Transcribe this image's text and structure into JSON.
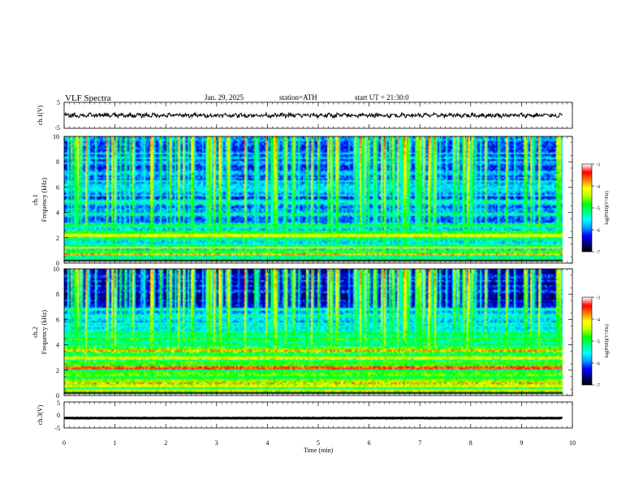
{
  "header": {
    "title": "VLF  Spectra",
    "date": "Jan. 29, 2025",
    "station": "station=ATH",
    "start": "start  UT  =   21:30:0"
  },
  "chart_data": [
    {
      "type": "line",
      "panel": "ch1-waveform",
      "ylabel": "ch.1(V)",
      "ylim": [
        -5,
        5
      ],
      "yticks": [
        "5",
        "-5"
      ],
      "xlim": [
        0,
        10
      ],
      "series": [
        {
          "mean": 0,
          "amplitude": 1.0,
          "xmax": 9.8
        }
      ]
    },
    {
      "type": "heatmap",
      "panel": "ch1-spectrogram",
      "ylabel": [
        "ch.1",
        "Frequency  (kHz)"
      ],
      "ylim": [
        0,
        10
      ],
      "yticks": [
        "0",
        "2",
        "4",
        "6",
        "8",
        "10"
      ],
      "xlim": [
        0,
        10
      ],
      "colorbar": {
        "label": "log(PSD)(V²/Hz)",
        "range": [
          -7,
          -3
        ],
        "ticks": [
          "-3",
          "-4",
          "-5",
          "-6",
          "-7"
        ]
      }
    },
    {
      "type": "heatmap",
      "panel": "ch2-spectrogram",
      "ylabel": [
        "ch.2",
        "Frequency  (kHz)"
      ],
      "ylim": [
        0,
        10
      ],
      "yticks": [
        "0",
        "2",
        "4",
        "6",
        "8",
        "10"
      ],
      "xlim": [
        0,
        10
      ],
      "colorbar": {
        "label": "log(PSD)(V²/Hz)",
        "range": [
          -7,
          -3
        ],
        "ticks": [
          "-3",
          "-4",
          "-5",
          "-6",
          "-7"
        ]
      }
    },
    {
      "type": "line",
      "panel": "ch3-waveform",
      "ylabel": "ch.3(V)",
      "ylim": [
        -5,
        5
      ],
      "yticks": [
        "5",
        "0",
        "-5"
      ],
      "xlim": [
        0,
        10
      ],
      "series": [
        {
          "mean": -1.2,
          "amplitude": 0.15,
          "xmax": 9.8
        }
      ]
    }
  ],
  "xaxis": {
    "label": "Time  (min)",
    "ticks": [
      "0",
      "1",
      "2",
      "3",
      "4",
      "5",
      "6",
      "7",
      "8",
      "9",
      "10"
    ]
  },
  "colors": {
    "colormap": [
      "#000000",
      "#000080",
      "#0000ff",
      "#00a0ff",
      "#00ffff",
      "#00ff80",
      "#00ff00",
      "#c0ff00",
      "#ffff00",
      "#ff8000",
      "#ff0000",
      "#ffffff"
    ]
  }
}
